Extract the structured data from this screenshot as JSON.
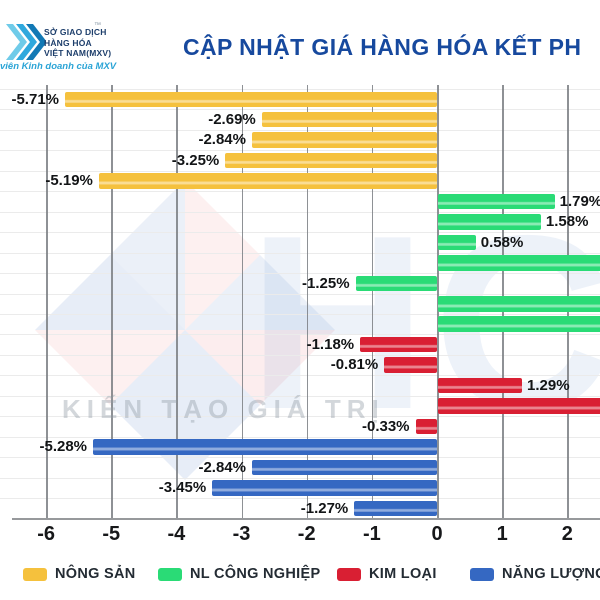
{
  "header": {
    "logo": {
      "org_lines": [
        "SỞ GIAO DỊCH",
        "HÀNG HÓA",
        "VIỆT NAM(MXV)"
      ],
      "trademark": "™",
      "tagline": "viên Kinh doanh của MXV"
    },
    "title": "CẬP NHẬT GIÁ HÀNG HÓA KẾT PH"
  },
  "watermark": {
    "letters": "HC",
    "tagline": "KIẾN TẠO GIÁ TRỊ"
  },
  "colors": {
    "title": "#17499E",
    "axis_text": "#17181A",
    "gridline": "#7A7E83",
    "nong_san": "#F5C13D",
    "nl_cong_nghiep": "#2ADB76",
    "kim_loai": "#D91F33",
    "nang_luong": "#3568C2"
  },
  "chart_data": {
    "type": "bar",
    "orientation": "horizontal",
    "value_unit": "%",
    "title": "CẬP NHẬT GIÁ HÀNG HÓA KẾT PH",
    "grid": true,
    "legend_position": "bottom",
    "x_axis": {
      "tick_labels": [
        "-6",
        "-5",
        "-4",
        "-3",
        "-2",
        "-1",
        "0",
        "1",
        "2"
      ],
      "tick_values": [
        -6,
        -5,
        -4,
        -3,
        -2,
        -1,
        0,
        1,
        2
      ],
      "min": -6,
      "max_visible": 2.5
    },
    "groups": [
      {
        "name": "NÔNG SẢN",
        "color": "#F5C13D",
        "bars": [
          {
            "value": -5.71,
            "label": "-5.71%"
          },
          {
            "value": -2.69,
            "label": "-2.69%"
          },
          {
            "value": -2.84,
            "label": "-2.84%"
          },
          {
            "value": -3.25,
            "label": "-3.25%"
          },
          {
            "value": -5.19,
            "label": "-5.19%"
          }
        ]
      },
      {
        "name": "NL CÔNG NGHIỆP",
        "color": "#2ADB76",
        "bars": [
          {
            "value": 1.79,
            "label": "1.79%"
          },
          {
            "value": 1.58,
            "label": "1.58%"
          },
          {
            "value": 0.58,
            "label": "0.58%"
          },
          {
            "value": 2.6,
            "label": "",
            "clipped": true
          },
          {
            "value": -1.25,
            "label": "-1.25%"
          },
          {
            "value": 2.6,
            "label": "",
            "clipped": true
          },
          {
            "value": 2.6,
            "label": "",
            "clipped": true
          }
        ]
      },
      {
        "name": "KIM LOẠI",
        "color": "#D91F33",
        "bars": [
          {
            "value": -1.18,
            "label": "-1.18%"
          },
          {
            "value": -0.81,
            "label": "-0.81%"
          },
          {
            "value": 1.29,
            "label": "1.29%"
          },
          {
            "value": 2.6,
            "label": "",
            "clipped": true
          },
          {
            "value": -0.33,
            "label": "-0.33%"
          }
        ]
      },
      {
        "name": "NĂNG LƯỢNG",
        "color": "#3568C2",
        "bars": [
          {
            "value": -5.28,
            "label": "-5.28%"
          },
          {
            "value": -2.84,
            "label": "-2.84%"
          },
          {
            "value": -3.45,
            "label": "-3.45%"
          },
          {
            "value": -1.27,
            "label": "-1.27%"
          }
        ]
      }
    ]
  }
}
